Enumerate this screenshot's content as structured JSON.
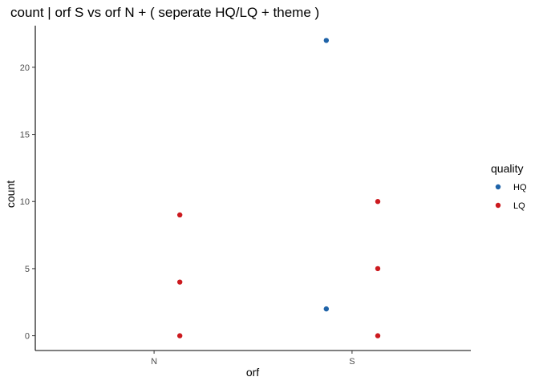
{
  "chart_data": {
    "type": "scatter",
    "title": "count | orf S vs orf N + ( seperate HQ/LQ + theme )",
    "xlabel": "orf",
    "ylabel": "count",
    "categories": [
      "N",
      "S"
    ],
    "ylim": [
      -1.1,
      23.1
    ],
    "yticks": [
      0,
      5,
      10,
      15,
      20
    ],
    "grid": false,
    "legend": {
      "title": "quality",
      "position": "right",
      "entries": [
        "HQ",
        "LQ"
      ]
    },
    "series": [
      {
        "name": "HQ",
        "color": "#1f63a8",
        "points": [
          {
            "x": "S",
            "y": 22
          },
          {
            "x": "S",
            "y": 2
          }
        ]
      },
      {
        "name": "LQ",
        "color": "#cc1a1f",
        "points": [
          {
            "x": "N",
            "y": 9
          },
          {
            "x": "N",
            "y": 4
          },
          {
            "x": "N",
            "y": 0
          },
          {
            "x": "S",
            "y": 10
          },
          {
            "x": "S",
            "y": 5
          },
          {
            "x": "S",
            "y": 0
          }
        ]
      }
    ]
  }
}
